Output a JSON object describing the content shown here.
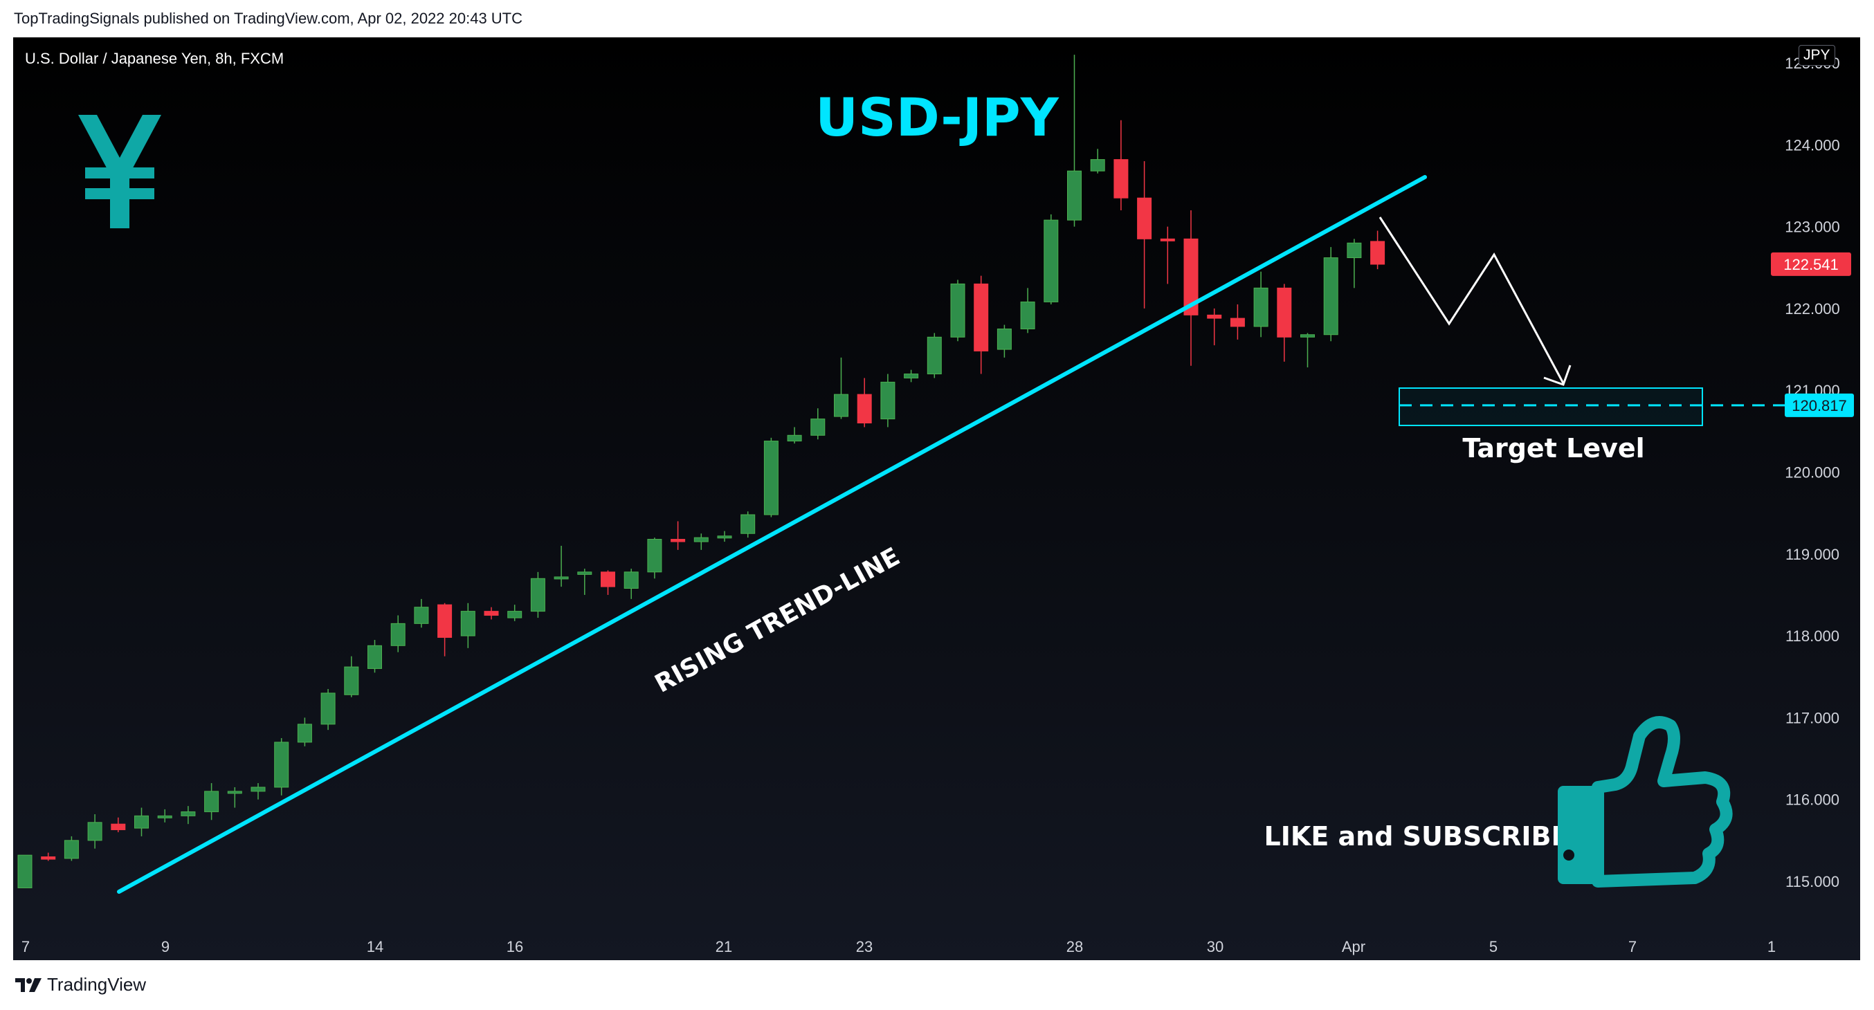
{
  "header": {
    "published": "TopTradingSignals published on TradingView.com, Apr 02, 2022 20:43 UTC"
  },
  "chart": {
    "symbol": "U.S. Dollar / Japanese Yen, 8h, FXCM",
    "currency": "JPY"
  },
  "footer": {
    "brand": "TradingView",
    "logo_icon": "tradingview-logo-icon"
  },
  "colors": {
    "up": "#2f8f4a",
    "down": "#f23645",
    "accent": "#00e5ff",
    "icon": "#0fa8a6",
    "axis_text": "#d1d4dc"
  },
  "chart_data": {
    "type": "candlestick",
    "title": "",
    "ylim": [
      114.3,
      125.0
    ],
    "y_ticks": [
      "115.000",
      "116.000",
      "117.000",
      "118.000",
      "119.000",
      "120.000",
      "121.000",
      "122.000",
      "123.000",
      "124.000",
      "125.000"
    ],
    "x_ticks": [
      "7",
      "9",
      "14",
      "16",
      "21",
      "23",
      "28",
      "30",
      "Apr",
      "5",
      "7",
      "1"
    ],
    "candles": [
      [
        114.92,
        115.32,
        115.32,
        114.92
      ],
      [
        115.3,
        115.27,
        115.35,
        115.25
      ],
      [
        115.28,
        115.5,
        115.55,
        115.25
      ],
      [
        115.5,
        115.72,
        115.82,
        115.4
      ],
      [
        115.7,
        115.63,
        115.78,
        115.6
      ],
      [
        115.65,
        115.8,
        115.9,
        115.55
      ],
      [
        115.78,
        115.8,
        115.88,
        115.72
      ],
      [
        115.8,
        115.85,
        115.92,
        115.7
      ],
      [
        115.85,
        116.1,
        116.2,
        115.75
      ],
      [
        116.08,
        116.1,
        116.15,
        115.9
      ],
      [
        116.1,
        116.15,
        116.2,
        116.0
      ],
      [
        116.15,
        116.7,
        116.75,
        116.05
      ],
      [
        116.7,
        116.92,
        117.0,
        116.65
      ],
      [
        116.92,
        117.3,
        117.35,
        116.85
      ],
      [
        117.28,
        117.62,
        117.75,
        117.25
      ],
      [
        117.6,
        117.88,
        117.95,
        117.55
      ],
      [
        117.88,
        118.15,
        118.25,
        117.8
      ],
      [
        118.15,
        118.35,
        118.45,
        118.1
      ],
      [
        118.38,
        117.98,
        118.4,
        117.75
      ],
      [
        118.0,
        118.3,
        118.4,
        117.85
      ],
      [
        118.3,
        118.25,
        118.35,
        118.2
      ],
      [
        118.22,
        118.3,
        118.38,
        118.18
      ],
      [
        118.3,
        118.7,
        118.78,
        118.22
      ],
      [
        118.7,
        118.72,
        119.1,
        118.6
      ],
      [
        118.75,
        118.78,
        118.82,
        118.5
      ],
      [
        118.78,
        118.6,
        118.8,
        118.5
      ],
      [
        118.58,
        118.78,
        118.82,
        118.45
      ],
      [
        118.78,
        119.18,
        119.2,
        118.7
      ],
      [
        119.18,
        119.15,
        119.4,
        119.05
      ],
      [
        119.15,
        119.2,
        119.25,
        119.05
      ],
      [
        119.2,
        119.22,
        119.28,
        119.15
      ],
      [
        119.25,
        119.48,
        119.52,
        119.2
      ],
      [
        119.48,
        120.38,
        120.42,
        119.45
      ],
      [
        120.38,
        120.45,
        120.55,
        120.35
      ],
      [
        120.45,
        120.65,
        120.78,
        120.4
      ],
      [
        120.68,
        120.95,
        121.4,
        120.65
      ],
      [
        120.95,
        120.6,
        121.15,
        120.55
      ],
      [
        120.65,
        121.1,
        121.2,
        120.55
      ],
      [
        121.15,
        121.2,
        121.25,
        121.1
      ],
      [
        121.2,
        121.65,
        121.7,
        121.15
      ],
      [
        121.65,
        122.3,
        122.35,
        121.6
      ],
      [
        122.3,
        121.48,
        122.4,
        121.2
      ],
      [
        121.5,
        121.75,
        121.8,
        121.4
      ],
      [
        121.75,
        122.08,
        122.25,
        121.7
      ],
      [
        122.08,
        123.08,
        123.15,
        122.05
      ],
      [
        123.08,
        123.68,
        125.1,
        123.0
      ],
      [
        123.68,
        123.82,
        123.95,
        123.65
      ],
      [
        123.82,
        123.35,
        124.3,
        123.2
      ],
      [
        123.35,
        122.85,
        123.8,
        122.0
      ],
      [
        122.85,
        122.83,
        123.0,
        122.3
      ],
      [
        122.85,
        121.92,
        123.2,
        121.3
      ],
      [
        121.92,
        121.88,
        122.0,
        121.55
      ],
      [
        121.88,
        121.78,
        122.05,
        121.62
      ],
      [
        121.78,
        122.25,
        122.45,
        121.65
      ],
      [
        122.25,
        121.65,
        122.3,
        121.35
      ],
      [
        121.65,
        121.68,
        121.7,
        121.28
      ],
      [
        121.68,
        122.62,
        122.75,
        121.6
      ],
      [
        122.62,
        122.8,
        122.85,
        122.25
      ],
      [
        122.82,
        122.54,
        122.95,
        122.48
      ]
    ],
    "last_price": "122.541",
    "target_price": "120.817",
    "annotations": {
      "title_text": "USD-JPY",
      "trendline_label": "RISING TREND-LINE",
      "target_label": "Target Level",
      "cta_text": "LIKE and SUBSCRIBE",
      "yen_icon": "yen-icon",
      "thumb_icon": "thumbs-up-icon"
    }
  }
}
